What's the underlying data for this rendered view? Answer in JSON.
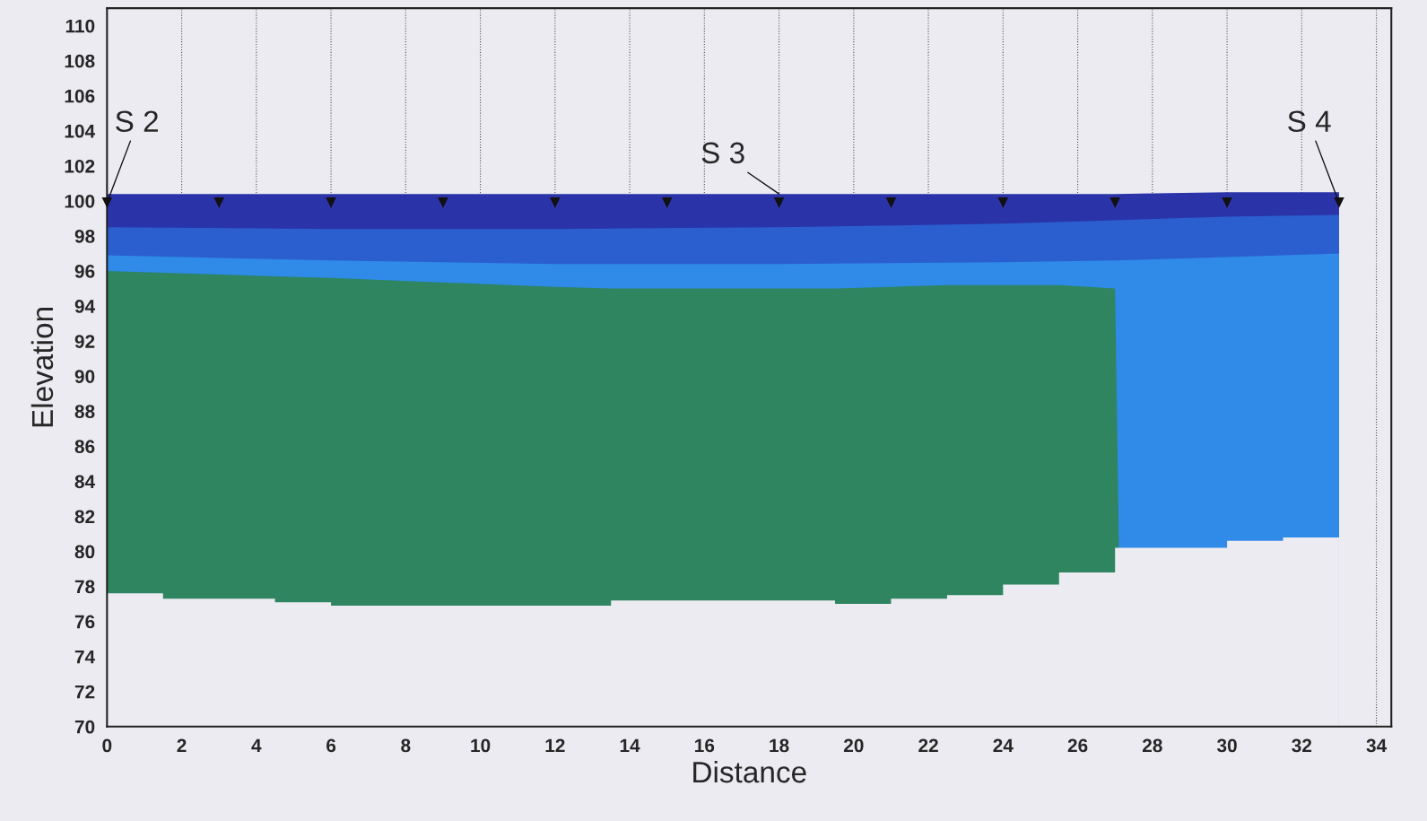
{
  "chart_data": {
    "type": "area",
    "xlabel": "Distance",
    "ylabel": "Elevation",
    "xlim": [
      0,
      34.4
    ],
    "ylim": [
      70,
      111
    ],
    "xticks": [
      0,
      2,
      4,
      6,
      8,
      10,
      12,
      14,
      16,
      18,
      20,
      22,
      24,
      26,
      28,
      30,
      32,
      34
    ],
    "yticks": [
      70,
      72,
      74,
      76,
      78,
      80,
      82,
      84,
      86,
      88,
      90,
      92,
      94,
      96,
      98,
      100,
      102,
      104,
      106,
      108,
      110
    ],
    "grid": "x",
    "legend": false,
    "series": [
      {
        "color": "#2a34a8",
        "x": [
          0,
          6,
          12,
          18,
          24,
          27,
          30,
          33
        ],
        "values": [
          100.4,
          100.4,
          100.4,
          100.4,
          100.4,
          100.4,
          100.5,
          100.5
        ]
      },
      {
        "color": "#2b5fd0",
        "x": [
          0,
          6,
          12,
          18,
          24,
          27,
          30,
          33
        ],
        "values": [
          98.5,
          98.4,
          98.4,
          98.5,
          98.7,
          98.9,
          99.1,
          99.2
        ]
      },
      {
        "color": "#2f8ae8",
        "x": [
          0,
          6,
          12,
          18,
          24,
          27,
          30,
          33
        ],
        "values": [
          96.9,
          96.6,
          96.4,
          96.4,
          96.5,
          96.6,
          96.8,
          97.0
        ]
      },
      {
        "color": "#2e8560",
        "x": [
          0,
          1.5,
          4.5,
          6,
          12,
          13.5,
          18,
          19.5,
          21,
          22.5,
          24,
          25.5,
          27,
          27.1
        ],
        "values": [
          96.0,
          95.9,
          95.7,
          95.6,
          95.1,
          95.0,
          95.0,
          95.0,
          95.1,
          95.2,
          95.2,
          95.2,
          95.0,
          80.6
        ]
      },
      {
        "color": "#ecebf2",
        "x": [
          0,
          1.5,
          1.5,
          4.5,
          4.5,
          6,
          6,
          13.5,
          13.5,
          19.5,
          19.5,
          21,
          21,
          22.5,
          22.5,
          24,
          24,
          25.5,
          25.5,
          27,
          27,
          30,
          30,
          31.5,
          31.5,
          33
        ],
        "values": [
          77.6,
          77.6,
          77.3,
          77.3,
          77.1,
          77.1,
          76.9,
          76.9,
          77.2,
          77.2,
          77.0,
          77.0,
          77.3,
          77.3,
          77.5,
          77.5,
          78.1,
          78.1,
          78.8,
          78.8,
          80.2,
          80.2,
          80.6,
          80.6,
          80.8,
          80.8
        ]
      },
      {
        "type": "scatter",
        "color": "#111111",
        "marker": "triangle",
        "x": [
          0,
          3,
          6,
          9,
          12,
          15,
          18,
          21,
          24,
          27,
          30,
          33
        ],
        "values": [
          99.9,
          99.9,
          99.9,
          99.9,
          99.9,
          99.9,
          99.9,
          99.9,
          99.9,
          99.9,
          99.9,
          99.9
        ]
      }
    ],
    "annotations": [
      {
        "text": "S 2",
        "x": 0,
        "y": 99.9
      },
      {
        "text": "S 3",
        "x": 18,
        "y": 100.4
      },
      {
        "text": "S 4",
        "x": 33,
        "y": 99.9
      }
    ]
  }
}
